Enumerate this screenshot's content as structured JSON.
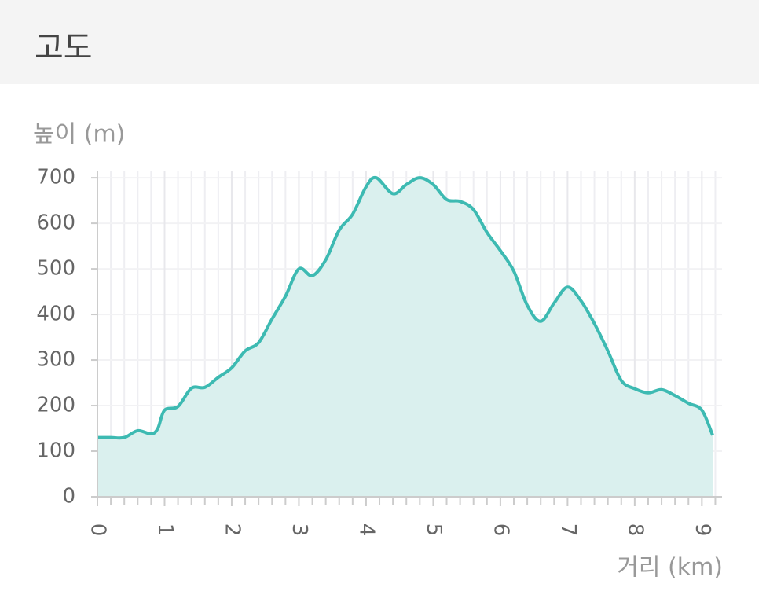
{
  "header": {
    "title": "고도"
  },
  "chart_data": {
    "type": "area",
    "ylabel": "높이 (m)",
    "xlabel": "거리 (km)",
    "x": [
      0,
      0.2,
      0.4,
      0.6,
      0.8,
      0.9,
      1.0,
      1.2,
      1.4,
      1.6,
      1.8,
      2.0,
      2.2,
      2.4,
      2.6,
      2.8,
      3.0,
      3.2,
      3.4,
      3.6,
      3.8,
      4.0,
      4.15,
      4.4,
      4.6,
      4.8,
      5.0,
      5.2,
      5.4,
      5.6,
      5.8,
      6.0,
      6.2,
      6.4,
      6.6,
      6.8,
      7.0,
      7.2,
      7.4,
      7.6,
      7.8,
      8.0,
      8.2,
      8.4,
      8.6,
      8.8,
      9.0,
      9.16
    ],
    "values": [
      130,
      130,
      130,
      145,
      138,
      150,
      190,
      198,
      238,
      240,
      262,
      283,
      320,
      338,
      390,
      440,
      500,
      485,
      520,
      585,
      620,
      680,
      700,
      665,
      685,
      700,
      685,
      652,
      648,
      630,
      580,
      540,
      495,
      420,
      385,
      425,
      460,
      430,
      380,
      320,
      255,
      237,
      228,
      235,
      222,
      205,
      190,
      135
    ],
    "color": "#3dbab2",
    "fill": "#daf0ee",
    "xlim": [
      0,
      9.3
    ],
    "ylim": [
      0,
      714
    ],
    "xticks": [
      0,
      1,
      2,
      3,
      4,
      5,
      6,
      7,
      8,
      9
    ],
    "x_minor_ticks": [
      0.2,
      0.4,
      0.6,
      0.8,
      1.2,
      1.4,
      1.6,
      1.8,
      2.2,
      2.4,
      2.6,
      2.8,
      3.2,
      3.4,
      3.6,
      3.8,
      4.2,
      4.4,
      4.6,
      4.8,
      5.2,
      5.4,
      5.6,
      5.8,
      6.2,
      6.4,
      6.6,
      6.8,
      7.2,
      7.4,
      7.6,
      7.8,
      8.2,
      8.4,
      8.6,
      8.8,
      9.2
    ],
    "yticks": [
      0,
      100,
      200,
      300,
      400,
      500,
      600,
      700
    ],
    "grid": true
  }
}
